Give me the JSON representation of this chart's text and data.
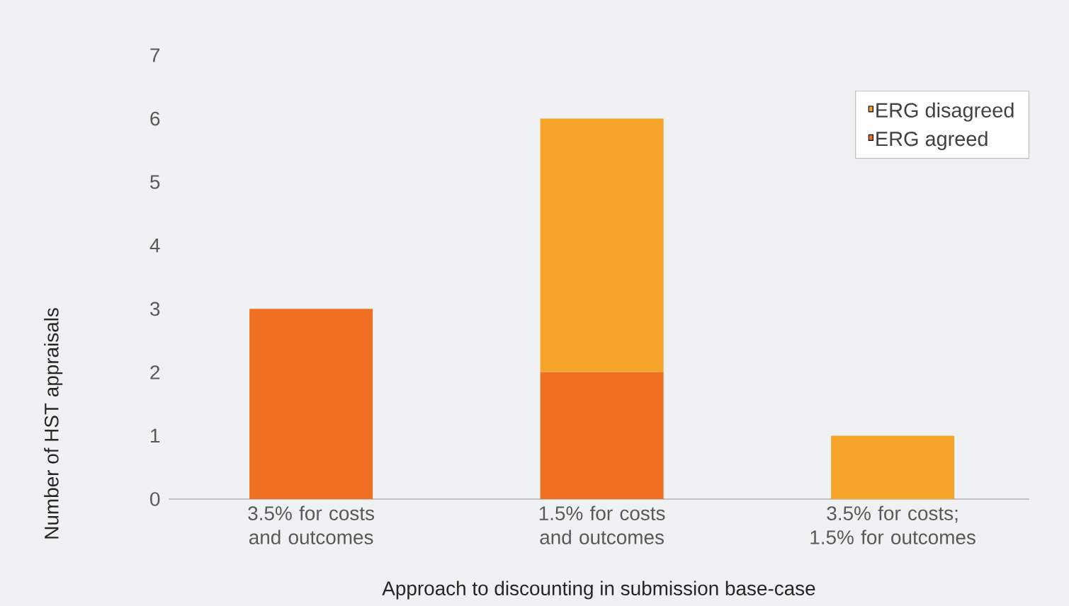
{
  "chart_data": {
    "type": "bar",
    "stacked": true,
    "xlabel": "Approach to discounting in submission base-case",
    "ylabel": "Number of HST appraisals",
    "categories": [
      "3.5% for costs and outcomes",
      "1.5% for costs and outcomes",
      "3.5% for costs; 1.5% for outcomes"
    ],
    "series": [
      {
        "name": "ERG agreed",
        "color": "#f07023",
        "values": [
          3,
          2,
          0
        ]
      },
      {
        "name": "ERG disagreed",
        "color": "#f7a42a",
        "values": [
          0,
          4,
          1
        ]
      }
    ],
    "ylim": [
      0,
      7
    ],
    "yticks": [
      0,
      1,
      2,
      3,
      4,
      5,
      6,
      7
    ],
    "grid": false,
    "legend": "top right"
  }
}
